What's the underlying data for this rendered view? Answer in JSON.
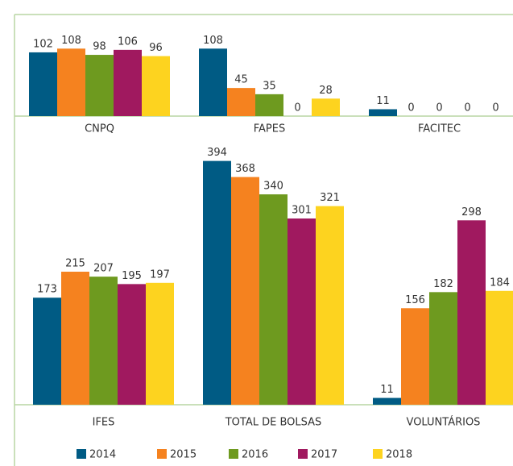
{
  "chart_data": [
    {
      "type": "bar",
      "categories": [
        "CNPQ",
        "FAPES",
        "FACITEC"
      ],
      "series": [
        {
          "name": "2014",
          "color": "#005b84",
          "values": [
            102,
            108,
            11
          ]
        },
        {
          "name": "2015",
          "color": "#f5821f",
          "values": [
            108,
            45,
            0
          ]
        },
        {
          "name": "2016",
          "color": "#6e9a1f",
          "values": [
            98,
            35,
            0
          ]
        },
        {
          "name": "2017",
          "color": "#a0195f",
          "values": [
            106,
            0,
            0
          ]
        },
        {
          "name": "2018",
          "color": "#fdd31f",
          "values": [
            96,
            28,
            0
          ]
        }
      ],
      "ylim": [
        0,
        160
      ]
    },
    {
      "type": "bar",
      "categories": [
        "IFES",
        "TOTAL DE BOLSAS",
        "VOLUNTÁRIOS"
      ],
      "series": [
        {
          "values": [
            173,
            394,
            11
          ]
        },
        {
          "values": [
            215,
            368,
            156
          ]
        },
        {
          "values": [
            207,
            340,
            182
          ]
        },
        {
          "values": [
            195,
            301,
            298
          ]
        },
        {
          "values": [
            197,
            321,
            184
          ]
        }
      ],
      "ylim": [
        0,
        430
      ]
    }
  ]
}
